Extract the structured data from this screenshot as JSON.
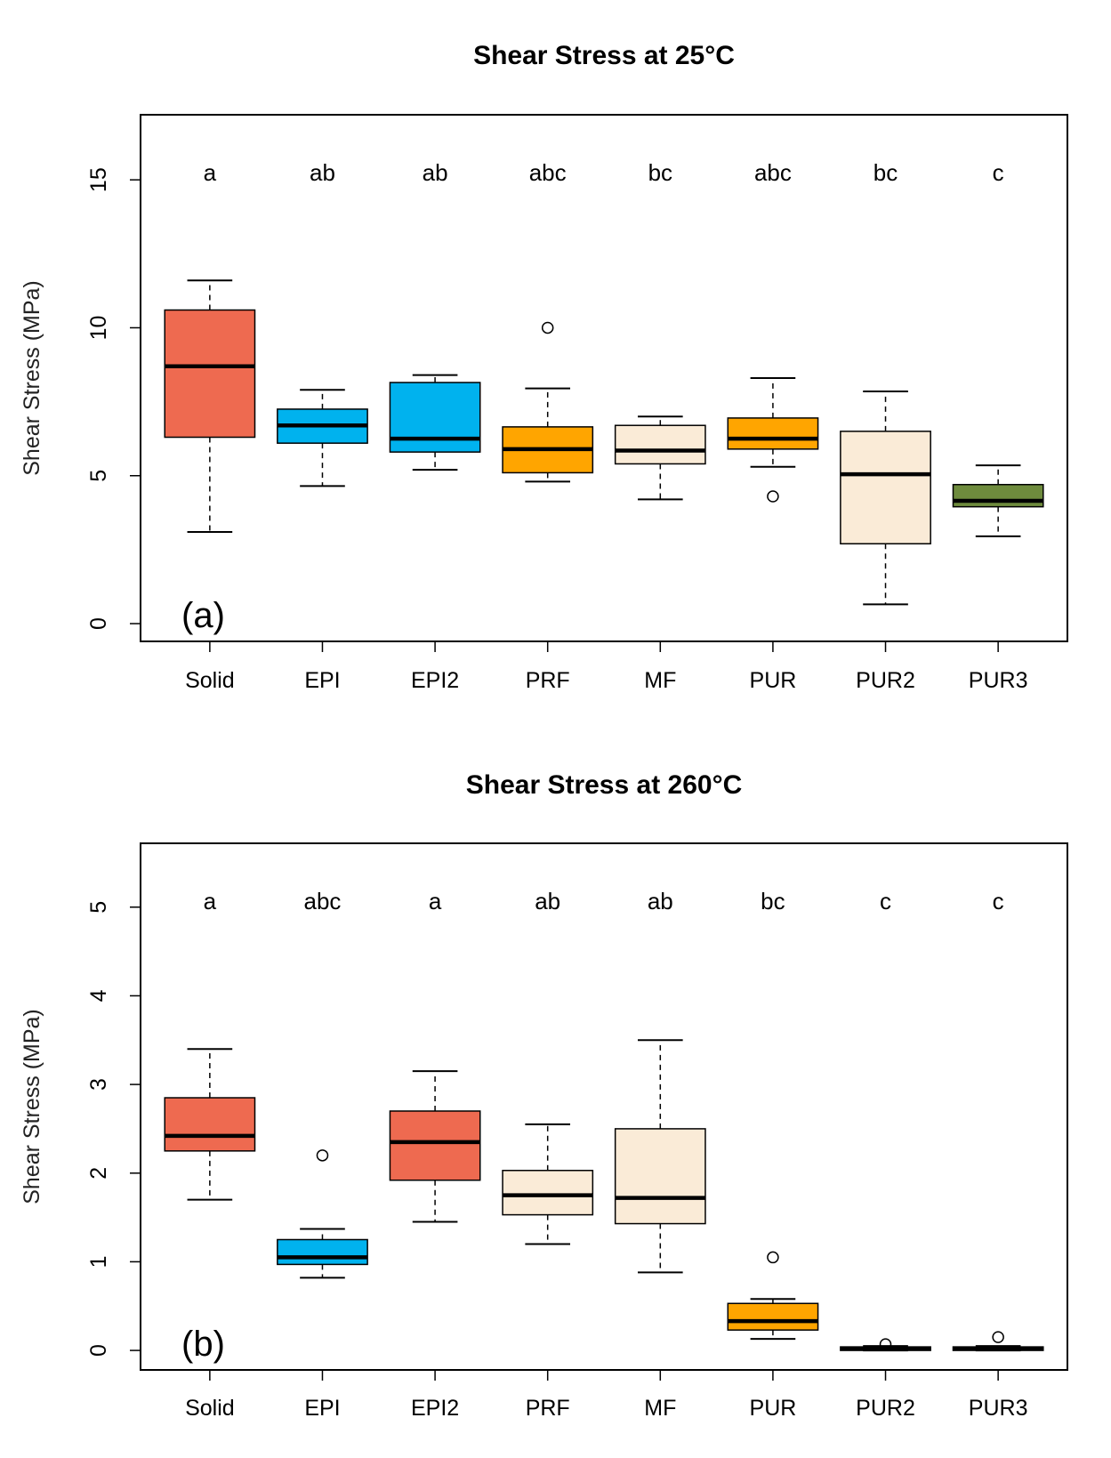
{
  "chart_data": [
    {
      "type": "boxplot",
      "panel_label": "(a)",
      "title": "Shear Stress at 25°C",
      "xlabel": "",
      "ylabel": "Shear Stress (MPa)",
      "ylim": [
        -0.6,
        17.2
      ],
      "yticks": [
        0,
        5,
        10,
        15
      ],
      "grid": false,
      "categories": [
        "Solid",
        "EPI",
        "EPI2",
        "PRF",
        "MF",
        "PUR",
        "PUR2",
        "PUR3"
      ],
      "group_letters": [
        "a",
        "ab",
        "ab",
        "abc",
        "bc",
        "abc",
        "bc",
        "c"
      ],
      "colors": [
        "#EE6A50",
        "#00B2EE",
        "#00B2EE",
        "#FFA500",
        "#FAEBD7",
        "#FFA500",
        "#FAEBD7",
        "#6E8B3D"
      ],
      "boxes": [
        {
          "whisker_low": 3.1,
          "q1": 6.3,
          "median": 8.7,
          "q3": 10.6,
          "whisker_high": 11.6,
          "outliers": []
        },
        {
          "whisker_low": 4.65,
          "q1": 6.1,
          "median": 6.7,
          "q3": 7.25,
          "whisker_high": 7.9,
          "outliers": []
        },
        {
          "whisker_low": 5.2,
          "q1": 5.8,
          "median": 6.25,
          "q3": 8.15,
          "whisker_high": 8.4,
          "outliers": []
        },
        {
          "whisker_low": 4.8,
          "q1": 5.1,
          "median": 5.9,
          "q3": 6.65,
          "whisker_high": 7.95,
          "outliers": [
            10.0
          ]
        },
        {
          "whisker_low": 4.2,
          "q1": 5.4,
          "median": 5.85,
          "q3": 6.7,
          "whisker_high": 7.0,
          "outliers": []
        },
        {
          "whisker_low": 5.3,
          "q1": 5.9,
          "median": 6.25,
          "q3": 6.95,
          "whisker_high": 8.3,
          "outliers": [
            4.3
          ]
        },
        {
          "whisker_low": 0.65,
          "q1": 2.7,
          "median": 5.05,
          "q3": 6.5,
          "whisker_high": 7.85,
          "outliers": []
        },
        {
          "whisker_low": 2.95,
          "q1": 3.95,
          "median": 4.15,
          "q3": 4.7,
          "whisker_high": 5.35,
          "outliers": []
        }
      ]
    },
    {
      "type": "boxplot",
      "panel_label": "(b)",
      "title": "Shear Stress at 260°C",
      "xlabel": "",
      "ylabel": "Shear Stress (MPa)",
      "ylim": [
        -0.22,
        5.72
      ],
      "yticks": [
        0,
        1,
        2,
        3,
        4,
        5
      ],
      "grid": false,
      "categories": [
        "Solid",
        "EPI",
        "EPI2",
        "PRF",
        "MF",
        "PUR",
        "PUR2",
        "PUR3"
      ],
      "group_letters": [
        "a",
        "abc",
        "a",
        "ab",
        "ab",
        "bc",
        "c",
        "c"
      ],
      "colors": [
        "#EE6A50",
        "#00B2EE",
        "#EE6A50",
        "#FAEBD7",
        "#FAEBD7",
        "#FFA500",
        "#FAEBD7",
        "#FAEBD7"
      ],
      "boxes": [
        {
          "whisker_low": 1.7,
          "q1": 2.25,
          "median": 2.42,
          "q3": 2.85,
          "whisker_high": 3.4,
          "outliers": []
        },
        {
          "whisker_low": 0.82,
          "q1": 0.97,
          "median": 1.05,
          "q3": 1.25,
          "whisker_high": 1.37,
          "outliers": [
            2.2
          ]
        },
        {
          "whisker_low": 1.45,
          "q1": 1.92,
          "median": 2.35,
          "q3": 2.7,
          "whisker_high": 3.15,
          "outliers": []
        },
        {
          "whisker_low": 1.2,
          "q1": 1.53,
          "median": 1.75,
          "q3": 2.03,
          "whisker_high": 2.55,
          "outliers": []
        },
        {
          "whisker_low": 0.88,
          "q1": 1.43,
          "median": 1.72,
          "q3": 2.5,
          "whisker_high": 3.5,
          "outliers": []
        },
        {
          "whisker_low": 0.13,
          "q1": 0.23,
          "median": 0.33,
          "q3": 0.53,
          "whisker_high": 0.58,
          "outliers": [
            1.05
          ]
        },
        {
          "whisker_low": 0.0,
          "q1": 0.0,
          "median": 0.02,
          "q3": 0.04,
          "whisker_high": 0.05,
          "outliers": [
            0.07
          ]
        },
        {
          "whisker_low": 0.0,
          "q1": 0.0,
          "median": 0.02,
          "q3": 0.04,
          "whisker_high": 0.05,
          "outliers": [
            0.15
          ]
        }
      ]
    }
  ]
}
